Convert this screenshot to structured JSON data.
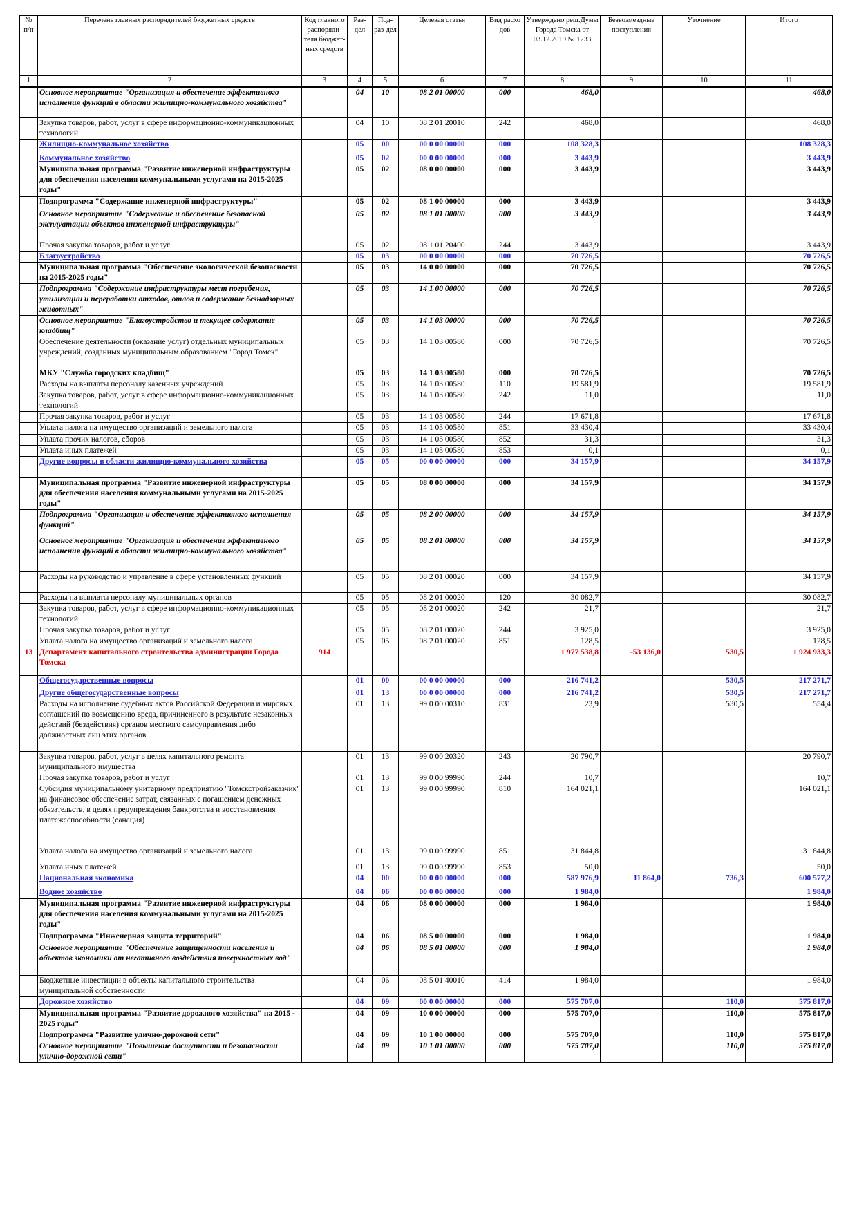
{
  "table": {
    "headers": [
      "№ п/п",
      "Перечень главных распорядителей бюджетных средств",
      "Код главного распоряди-теля бюджет-ных средств",
      "Раз-дел",
      "Под-раз-дел",
      "Целевая статья",
      "Вид расхо дов",
      "Утверждено реш.Думы Города Томска от 03.12.2019 № 1233",
      "Безвозмездные поступления",
      "Уточнение",
      "Итого"
    ],
    "col_numbers": [
      "1",
      "2",
      "3",
      "4",
      "5",
      "6",
      "7",
      "8",
      "9",
      "10",
      "11"
    ],
    "rows": [
      {
        "s": "ital",
        "h": 45,
        "n": "",
        "name": "Основное мероприятие \"Организация и обеспечение эффективного исполнения функций в области жилищно-коммунального хозяйства\"",
        "code": "",
        "razd": "04",
        "podr": "10",
        "cs": "08 2 01 00000",
        "vr": "000",
        "appr": "468,0",
        "bez": "",
        "ut": "",
        "itog": "468,0"
      },
      {
        "s": "plain",
        "h": 30,
        "n": "",
        "name": "Закупка товаров, работ, услуг в сфере информационно-коммуникационных технологий",
        "code": "",
        "razd": "04",
        "podr": "10",
        "cs": "08 2 01 20010",
        "vr": "242",
        "appr": "468,0",
        "bez": "",
        "ut": "",
        "itog": "468,0"
      },
      {
        "s": "blue",
        "h": 20,
        "n": "",
        "name": "Жилищно-коммунальное хозяйство",
        "code": "",
        "razd": "05",
        "podr": "00",
        "cs": "00 0 00 00000",
        "vr": "000",
        "appr": "108 328,3",
        "bez": "",
        "ut": "",
        "itog": "108 328,3"
      },
      {
        "s": "blue",
        "h": 15,
        "n": "",
        "name": "Коммунальное хозяйство",
        "code": "",
        "razd": "05",
        "podr": "02",
        "cs": "00 0 00 00000",
        "vr": "000",
        "appr": "3 443,9",
        "bez": "",
        "ut": "",
        "itog": "3 443,9"
      },
      {
        "s": "bold",
        "h": 47,
        "n": "",
        "name": "Муниципальная программа \"Развитие инженерной инфраструктуры для обеспечения населения коммунальными услугами на 2015-2025 годы\"",
        "code": "",
        "razd": "05",
        "podr": "02",
        "cs": "08 0 00 00000",
        "vr": "000",
        "appr": "3 443,9",
        "bez": "",
        "ut": "",
        "itog": "3 443,9"
      },
      {
        "s": "bold",
        "h": 18,
        "n": "",
        "name": "Подпрограмма \"Содержание инженерной инфраструктуры\"",
        "code": "",
        "razd": "05",
        "podr": "02",
        "cs": "08 1 00 00000",
        "vr": "000",
        "appr": "3 443,9",
        "bez": "",
        "ut": "",
        "itog": "3 443,9"
      },
      {
        "s": "ital",
        "h": 45,
        "n": "",
        "name": "Основное мероприятие \"Содержание и обеспечение безопасной эксплуатации объектов инженерной инфраструктуры\"",
        "code": "",
        "razd": "05",
        "podr": "02",
        "cs": "08 1 01 00000",
        "vr": "000",
        "appr": "3 443,9",
        "bez": "",
        "ut": "",
        "itog": "3 443,9"
      },
      {
        "s": "plain",
        "h": 15,
        "n": "",
        "name": "Прочая закупка товаров, работ и услуг",
        "code": "",
        "razd": "05",
        "podr": "02",
        "cs": "08 1 01 20400",
        "vr": "244",
        "appr": "3 443,9",
        "bez": "",
        "ut": "",
        "itog": "3 443,9"
      },
      {
        "s": "blue",
        "h": 15,
        "n": "",
        "name": "Благоустройство",
        "code": "",
        "razd": "05",
        "podr": "03",
        "cs": "00 0 00 00000",
        "vr": "000",
        "appr": "70 726,5",
        "bez": "",
        "ut": "",
        "itog": "70 726,5"
      },
      {
        "s": "bold",
        "h": 30,
        "n": "",
        "name": "Муниципальная программа \"Обеспечение экологической безопасности на 2015-2025 годы\"",
        "code": "",
        "razd": "05",
        "podr": "03",
        "cs": "14 0 00 00000",
        "vr": "000",
        "appr": "70 726,5",
        "bez": "",
        "ut": "",
        "itog": "70 726,5"
      },
      {
        "s": "boldital",
        "h": 45,
        "n": "",
        "name": "Подпрограмма \"Содержание инфраструктуры мест погребения, утилизации и переработки отходов, отлов и содержание безнадзорных животных\"",
        "code": "",
        "razd": "05",
        "podr": "03",
        "cs": "14 1 00 00000",
        "vr": "000",
        "appr": "70 726,5",
        "bez": "",
        "ut": "",
        "itog": "70 726,5"
      },
      {
        "s": "ital",
        "h": 30,
        "n": "",
        "name": "Основное мероприятие \"Благоустройство и текущее содержание кладбищ\"",
        "code": "",
        "razd": "05",
        "podr": "03",
        "cs": "14 1 03 00000",
        "vr": "000",
        "appr": "70 726,5",
        "bez": "",
        "ut": "",
        "itog": "70 726,5"
      },
      {
        "s": "plain",
        "h": 45,
        "n": "",
        "name": "Обеспечение деятельности (оказание услуг) отдельных муниципальных учреждений, созданных муниципальным образованием \"Город Томск\"",
        "code": "",
        "razd": "05",
        "podr": "03",
        "cs": "14 1 03 00580",
        "vr": "000",
        "appr": "70 726,5",
        "bez": "",
        "ut": "",
        "itog": "70 726,5"
      },
      {
        "s": "bold",
        "h": 15,
        "n": "",
        "name": "МКУ \"Служба городских кладбищ\"",
        "code": "",
        "razd": "05",
        "podr": "03",
        "cs": "14 1 03 00580",
        "vr": "000",
        "appr": "70 726,5",
        "bez": "",
        "ut": "",
        "itog": "70 726,5"
      },
      {
        "s": "plain",
        "h": 15,
        "n": "",
        "name": "Расходы на выплаты персоналу казенных учреждений",
        "code": "",
        "razd": "05",
        "podr": "03",
        "cs": "14 1 03 00580",
        "vr": "110",
        "appr": "19 581,9",
        "bez": "",
        "ut": "",
        "itog": "19 581,9"
      },
      {
        "s": "plain",
        "h": 30,
        "n": "",
        "name": "Закупка товаров, работ, услуг в сфере информационно-коммуникационных технологий",
        "code": "",
        "razd": "05",
        "podr": "03",
        "cs": "14 1 03 00580",
        "vr": "242",
        "appr": "11,0",
        "bez": "",
        "ut": "",
        "itog": "11,0"
      },
      {
        "s": "plain",
        "h": 15,
        "n": "",
        "name": "Прочая закупка товаров, работ и услуг",
        "code": "",
        "razd": "05",
        "podr": "03",
        "cs": "14 1 03 00580",
        "vr": "244",
        "appr": "17 671,8",
        "bez": "",
        "ut": "",
        "itog": "17 671,8"
      },
      {
        "s": "plain",
        "h": 17,
        "n": "",
        "name": "Уплата налога на имущество организаций и земельного налога",
        "code": "",
        "razd": "05",
        "podr": "03",
        "cs": "14 1 03 00580",
        "vr": "851",
        "appr": "33 430,4",
        "bez": "",
        "ut": "",
        "itog": "33 430,4"
      },
      {
        "s": "plain",
        "h": 15,
        "n": "",
        "name": "Уплата прочих налогов, сборов",
        "code": "",
        "razd": "05",
        "podr": "03",
        "cs": "14 1 03 00580",
        "vr": "852",
        "appr": "31,3",
        "bez": "",
        "ut": "",
        "itog": "31,3"
      },
      {
        "s": "plain",
        "h": 15,
        "n": "",
        "name": "Уплата иных платежей",
        "code": "",
        "razd": "05",
        "podr": "03",
        "cs": "14 1 03 00580",
        "vr": "853",
        "appr": "0,1",
        "bez": "",
        "ut": "",
        "itog": "0,1"
      },
      {
        "s": "blue",
        "h": 31,
        "n": "",
        "name": "Другие вопросы в области жилищно-коммунального хозяйства",
        "code": "",
        "razd": "05",
        "podr": "05",
        "cs": "00 0 00 00000",
        "vr": "000",
        "appr": "34 157,9",
        "bez": "",
        "ut": "",
        "itog": "34 157,9"
      },
      {
        "s": "bold",
        "h": 45,
        "n": "",
        "name": "Муниципальная программа \"Развитие инженерной инфраструктуры для обеспечения населения коммунальными услугами на 2015-2025 годы\"",
        "code": "",
        "razd": "05",
        "podr": "05",
        "cs": "08 0 00 00000",
        "vr": "000",
        "appr": "34 157,9",
        "bez": "",
        "ut": "",
        "itog": "34 157,9"
      },
      {
        "s": "boldital",
        "h": 38,
        "n": "",
        "name": "Подпрограмма \"Организация и обеспечение эффективного исполнения функций\"",
        "code": "",
        "razd": "05",
        "podr": "05",
        "cs": "08 2 00 00000",
        "vr": "000",
        "appr": "34 157,9",
        "bez": "",
        "ut": "",
        "itog": "34 157,9"
      },
      {
        "s": "ital",
        "h": 52,
        "n": "",
        "name": "Основное мероприятие \"Организация и обеспечение эффективного исполнения функций в области жилищно-коммунального хозяйства\"",
        "code": "",
        "razd": "05",
        "podr": "05",
        "cs": "08 2 01 00000",
        "vr": "000",
        "appr": "34 157,9",
        "bez": "",
        "ut": "",
        "itog": "34 157,9"
      },
      {
        "s": "plain",
        "h": 30,
        "n": "",
        "name": "Расходы на руководство и управление в сфере установленных функций",
        "code": "",
        "razd": "05",
        "podr": "05",
        "cs": "08 2 01 00020",
        "vr": "000",
        "appr": "34 157,9",
        "bez": "",
        "ut": "",
        "itog": "34 157,9"
      },
      {
        "s": "plain",
        "h": 15,
        "n": "",
        "name": "Расходы на выплаты персоналу муниципальных органов",
        "code": "",
        "razd": "05",
        "podr": "05",
        "cs": "08 2 01 00020",
        "vr": "120",
        "appr": "30 082,7",
        "bez": "",
        "ut": "",
        "itog": "30 082,7"
      },
      {
        "s": "plain",
        "h": 30,
        "n": "",
        "name": "Закупка товаров, работ, услуг в сфере информационно-коммуникационных технологий",
        "code": "",
        "razd": "05",
        "podr": "05",
        "cs": "08 2 01 00020",
        "vr": "242",
        "appr": "21,7",
        "bez": "",
        "ut": "",
        "itog": "21,7"
      },
      {
        "s": "plain",
        "h": 15,
        "n": "",
        "name": "Прочая закупка товаров, работ и услуг",
        "code": "",
        "razd": "05",
        "podr": "05",
        "cs": "08 2 01 00020",
        "vr": "244",
        "appr": "3 925,0",
        "bez": "",
        "ut": "",
        "itog": "3 925,0"
      },
      {
        "s": "plain",
        "h": 15,
        "n": "",
        "name": "Уплата налога на имущество организаций и земельного налога",
        "code": "",
        "razd": "05",
        "podr": "05",
        "cs": "08 2 01 00020",
        "vr": "851",
        "appr": "128,5",
        "bez": "",
        "ut": "",
        "itog": "128,5"
      },
      {
        "s": "dept",
        "h": 41,
        "n": "13",
        "name": "Департамент капитального строительства администрации Города Томска",
        "code": "914",
        "razd": "",
        "podr": "",
        "cs": "",
        "vr": "",
        "appr": "1 977 538,8",
        "bez": "-53 136,0",
        "ut": "530,5",
        "itog": "1 924 933,3"
      },
      {
        "s": "blue",
        "h": 18,
        "n": "",
        "name": "Общегосударственные вопросы",
        "code": "",
        "razd": "01",
        "podr": "00",
        "cs": "00 0 00 00000",
        "vr": "000",
        "appr": "216 741,2",
        "bez": "",
        "ut": "530,5",
        "itog": "217 271,7"
      },
      {
        "s": "blue",
        "h": 16,
        "n": "",
        "name": "Другие общегосударственные вопросы",
        "code": "",
        "razd": "01",
        "podr": "13",
        "cs": "00 0 00 00000",
        "vr": "000",
        "appr": "216 741,2",
        "bez": "",
        "ut": "530,5",
        "itog": "217 271,7"
      },
      {
        "s": "plain",
        "h": 76,
        "n": "",
        "name": "Расходы на исполнение судебных актов Российской Федерации и мировых соглашений по возмещению вреда, причиненного в результате незаконных действий (бездействия) органов местного самоуправления либо должностных лиц этих органов",
        "code": "",
        "razd": "01",
        "podr": "13",
        "cs": "99 0 00 00310",
        "vr": "831",
        "appr": "23,9",
        "bez": "",
        "ut": "530,5",
        "itog": "554,4"
      },
      {
        "s": "plain",
        "h": 31,
        "n": "",
        "name": "Закупка товаров, работ, услуг в целях капитального ремонта муниципального имущества",
        "code": "",
        "razd": "01",
        "podr": "13",
        "cs": "99 0 00 20320",
        "vr": "243",
        "appr": "20 790,7",
        "bez": "",
        "ut": "",
        "itog": "20 790,7"
      },
      {
        "s": "plain",
        "h": 15,
        "n": "",
        "name": "Прочая закупка товаров, работ и услуг",
        "code": "",
        "razd": "01",
        "podr": "13",
        "cs": "99 0 00 99990",
        "vr": "244",
        "appr": "10,7",
        "bez": "",
        "ut": "",
        "itog": "10,7"
      },
      {
        "s": "plain",
        "h": 90,
        "n": "",
        "name": "Субсидия муниципальному унитарному предприятию \"Томскстройзаказчик\" на финансовое обеспечение затрат, связанных с погашением денежных обязательств, в целях предупреждения банкротства и восстановления платежеспособности (санация)",
        "code": "",
        "razd": "01",
        "podr": "13",
        "cs": "99 0 00 99990",
        "vr": "810",
        "appr": "164 021,1",
        "bez": "",
        "ut": "",
        "itog": "164 021,1"
      },
      {
        "s": "plain",
        "h": 23,
        "n": "",
        "name": "Уплата налога на имущество организаций и земельного налога",
        "code": "",
        "razd": "01",
        "podr": "13",
        "cs": "99 0 00 99990",
        "vr": "851",
        "appr": "31 844,8",
        "bez": "",
        "ut": "",
        "itog": "31 844,8"
      },
      {
        "s": "plain",
        "h": 15,
        "n": "",
        "name": "Уплата иных платежей",
        "code": "",
        "razd": "01",
        "podr": "13",
        "cs": "99 0 00 99990",
        "vr": "853",
        "appr": "50,0",
        "bez": "",
        "ut": "",
        "itog": "50,0"
      },
      {
        "s": "blue",
        "h": 20,
        "n": "",
        "name": "Национальная экономика",
        "code": "",
        "razd": "04",
        "podr": "00",
        "cs": "00 0 00 00000",
        "vr": "000",
        "appr": "587 976,9",
        "bez": "11 864,0",
        "ut": "736,3",
        "itog": "600 577,2"
      },
      {
        "s": "blue",
        "h": 17,
        "n": "",
        "name": "Водное хозяйство",
        "code": "",
        "razd": "04",
        "podr": "06",
        "cs": "00 0 00 00000",
        "vr": "000",
        "appr": "1 984,0",
        "bez": "",
        "ut": "",
        "itog": "1 984,0"
      },
      {
        "s": "bold",
        "h": 47,
        "n": "",
        "name": "Муниципальная программа \"Развитие инженерной инфраструктуры для обеспечения населения коммунальными услугами на 2015-2025 годы\"",
        "code": "",
        "razd": "04",
        "podr": "06",
        "cs": "08 0 00 00000",
        "vr": "000",
        "appr": "1 984,0",
        "bez": "",
        "ut": "",
        "itog": "1 984,0"
      },
      {
        "s": "bold",
        "h": 17,
        "n": "",
        "name": "Подпрограмма \"Инженерная защита территорий\"",
        "code": "",
        "razd": "04",
        "podr": "06",
        "cs": "08 5 00 00000",
        "vr": "000",
        "appr": "1 984,0",
        "bez": "",
        "ut": "",
        "itog": "1 984,0"
      },
      {
        "s": "ital",
        "h": 47,
        "n": "",
        "name": "Основное мероприятие \"Обеспечение защищенности населения и объектов экономики от негативного воздействия поверхностных вод\"",
        "code": "",
        "razd": "04",
        "podr": "06",
        "cs": "08 5 01 00000",
        "vr": "000",
        "appr": "1 984,0",
        "bez": "",
        "ut": "",
        "itog": "1 984,0"
      },
      {
        "s": "plain",
        "h": 31,
        "n": "",
        "name": "Бюджетные инвестиции в объекты капитального строительства муниципальной собственности",
        "code": "",
        "razd": "04",
        "podr": "06",
        "cs": "08 5 01 40010",
        "vr": "414",
        "appr": "1 984,0",
        "bez": "",
        "ut": "",
        "itog": "1 984,0"
      },
      {
        "s": "blue",
        "h": 17,
        "n": "",
        "name": "Дорожное хозяйство",
        "code": "",
        "razd": "04",
        "podr": "09",
        "cs": "00 0 00 00000",
        "vr": "000",
        "appr": "575 707,0",
        "bez": "",
        "ut": "110,0",
        "itog": "575 817,0"
      },
      {
        "s": "bold",
        "h": 31,
        "n": "",
        "name": "Муниципальная программа \"Развитие дорожного хозяйства\" на 2015 - 2025 годы\"",
        "code": "",
        "razd": "04",
        "podr": "09",
        "cs": "10 0 00 00000",
        "vr": "000",
        "appr": "575 707,0",
        "bez": "",
        "ut": "110,0",
        "itog": "575 817,0"
      },
      {
        "s": "bold",
        "h": 16,
        "n": "",
        "name": "Подпрограмма \"Развитие улично-дорожной сети\"",
        "code": "",
        "razd": "04",
        "podr": "09",
        "cs": "10 1 00 00000",
        "vr": "000",
        "appr": "575 707,0",
        "bez": "",
        "ut": "110,0",
        "itog": "575 817,0"
      },
      {
        "s": "ital",
        "h": 31,
        "n": "",
        "name": "Основное мероприятие \"Повышение доступности и безопасности улично-дорожной сети\"",
        "code": "",
        "razd": "04",
        "podr": "09",
        "cs": "10 1 01 00000",
        "vr": "000",
        "appr": "575 707,0",
        "bez": "",
        "ut": "110,0",
        "itog": "575 817,0"
      }
    ]
  }
}
